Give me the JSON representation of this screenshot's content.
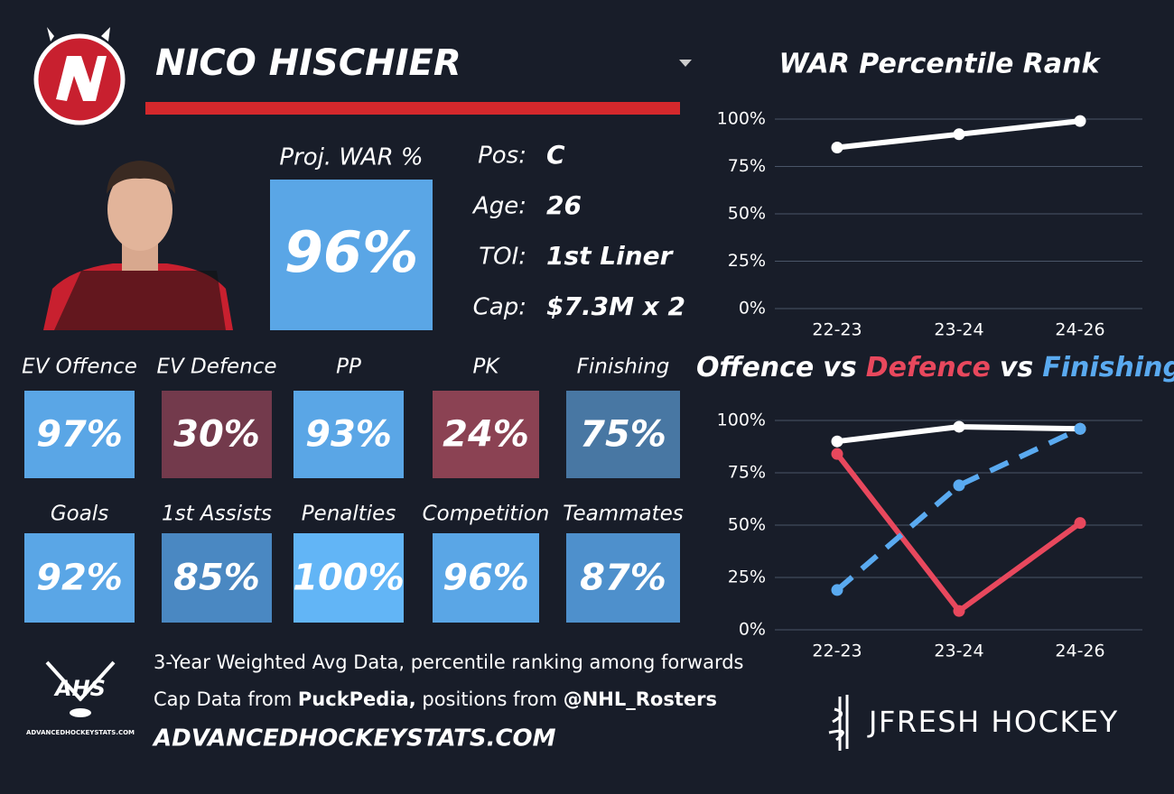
{
  "header": {
    "name": "NICO HISCHIER"
  },
  "projection": {
    "label": "Proj. WAR %",
    "value": "96%",
    "color": "#5aa6e6"
  },
  "info": [
    {
      "label": "Pos:",
      "value": "C"
    },
    {
      "label": "Age:",
      "value": "26"
    },
    {
      "label": "TOI:",
      "value": "1st Liner"
    },
    {
      "label": "Cap:",
      "value": "$7.3M x 2"
    }
  ],
  "tiles": [
    [
      {
        "label": "EV Offence",
        "value": "97%",
        "color": "#5aa6e6"
      },
      {
        "label": "EV Defence",
        "value": "30%",
        "color": "#733a4c"
      },
      {
        "label": "PP",
        "value": "93%",
        "color": "#5aa6e6"
      },
      {
        "label": "PK",
        "value": "24%",
        "color": "#8b4253"
      },
      {
        "label": "Finishing",
        "value": "75%",
        "color": "#4877a3"
      }
    ],
    [
      {
        "label": "Goals",
        "value": "92%",
        "color": "#5aa6e6"
      },
      {
        "label": "1st Assists",
        "value": "85%",
        "color": "#4a88c2"
      },
      {
        "label": "Penalties",
        "value": "100%",
        "color": "#62b5f6"
      },
      {
        "label": "Competition",
        "value": "96%",
        "color": "#5aa6e6"
      },
      {
        "label": "Teammates",
        "value": "87%",
        "color": "#4e90cc"
      }
    ]
  ],
  "footer": {
    "logo": "AHS",
    "logo_caption": "ADVANCEDHOCKEYSTATS.COM",
    "note": "3-Year Weighted Avg Data, percentile ranking among forwards",
    "credits": [
      "Cap Data from ",
      "PuckPedia,",
      " positions from ",
      "@NHL_Rosters"
    ],
    "site": "ADVANCEDHOCKEYSTATS.COM",
    "brand": "JFRESH HOCKEY"
  },
  "chart_data": [
    {
      "type": "line",
      "title": "WAR Percentile Rank",
      "categories": [
        "22-23",
        "23-24",
        "24-26"
      ],
      "series": [
        {
          "name": "WAR",
          "color": "#ffffff",
          "values": [
            85,
            92,
            99
          ]
        }
      ],
      "ylim": [
        0,
        100
      ],
      "yticks": [
        {
          "value": 0,
          "label": "0%"
        },
        {
          "value": 25,
          "label": "25%"
        },
        {
          "value": 50,
          "label": "50%"
        },
        {
          "value": 75,
          "label": "75%"
        },
        {
          "value": 100,
          "label": "100%"
        }
      ],
      "grid": true
    },
    {
      "type": "line",
      "title_separator": "vs",
      "categories": [
        "22-23",
        "23-24",
        "24-26"
      ],
      "series": [
        {
          "name": "Offence",
          "color": "#ffffff",
          "values": [
            90,
            97,
            96
          ]
        },
        {
          "name": "Defence",
          "color": "#e8485d",
          "values": [
            84,
            9,
            51
          ]
        },
        {
          "name": "Finishing",
          "color": "#5aaaf0",
          "dashed": true,
          "values": [
            19,
            69,
            96
          ]
        }
      ],
      "ylim": [
        0,
        100
      ],
      "yticks": [
        {
          "value": 0,
          "label": "0%"
        },
        {
          "value": 25,
          "label": "25%"
        },
        {
          "value": 50,
          "label": "50%"
        },
        {
          "value": 75,
          "label": "75%"
        },
        {
          "value": 100,
          "label": "100%"
        }
      ],
      "grid": true
    }
  ]
}
